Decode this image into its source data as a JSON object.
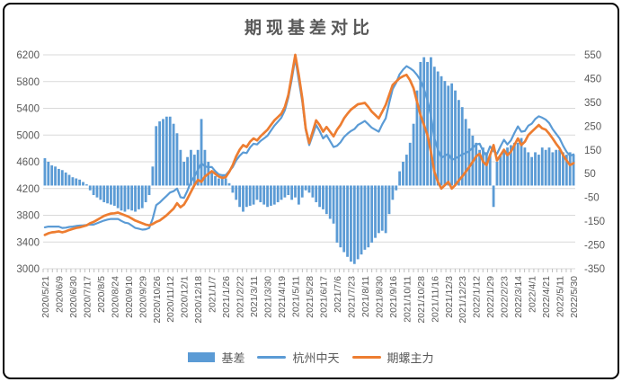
{
  "window": {
    "title": "期现基差对比"
  },
  "legend": {
    "items": [
      {
        "label": "基差",
        "type": "bar",
        "color": "#5B9BD5"
      },
      {
        "label": "杭州中天",
        "type": "line",
        "color": "#5B9BD5"
      },
      {
        "label": "期螺主力",
        "type": "line",
        "color": "#ED7D31"
      }
    ]
  },
  "colors": {
    "bar_blue": "#5B9BD5",
    "line_blue": "#5B9BD5",
    "line_orange": "#ED7D31",
    "gridline": "#D9D9D9",
    "tick": "#BFBFBF",
    "axis_text": "#595959",
    "title_text": "#595959"
  },
  "chart_data": {
    "type": "combo-bar-line",
    "title": "期现基差对比",
    "grid": true,
    "legend_position": "bottom",
    "x_labels": [
      "2020/5/21",
      "2020/6/9",
      "2020/6/30",
      "2020/7/17",
      "2020/8/5",
      "2020/8/24",
      "2020/9/10",
      "2020/9/29",
      "2020/10/26",
      "2020/11/12",
      "2020/12/1",
      "2020/12/18",
      "2021/1/7",
      "2021/1/26",
      "2021/2/22",
      "2021/3/11",
      "2021/3/30",
      "2021/4/19",
      "2021/5/11",
      "2021/5/28",
      "2021/6/17",
      "2021/7/6",
      "2021/7/23",
      "2021/8/11",
      "2021/8/30",
      "2021/9/16",
      "2021/10/11",
      "2021/10/28",
      "2021/11/16",
      "2021/12/3",
      "2021/12/23",
      "2022/1/12",
      "2022/1/29",
      "2022/2/23",
      "2022/3/14",
      "2022/4/1",
      "2022/4/21",
      "2022/5/11",
      "2022/5/30"
    ],
    "points_per_label": 4,
    "left_axis": {
      "min": 3000,
      "max": 6200,
      "step": 400,
      "ticks": [
        3000,
        3400,
        3800,
        4200,
        4600,
        5000,
        5400,
        5800,
        6200
      ]
    },
    "right_axis": {
      "min": -350,
      "max": 550,
      "step": 100,
      "ticks": [
        -350,
        -250,
        -150,
        -50,
        50,
        150,
        250,
        350,
        450,
        550
      ]
    },
    "series": [
      {
        "name": "基差",
        "type": "bar",
        "axis": "right",
        "color": "#5B9BD5",
        "values": [
          115,
          100,
          85,
          80,
          70,
          65,
          55,
          45,
          35,
          30,
          25,
          15,
          5,
          -20,
          -40,
          -50,
          -60,
          -70,
          -75,
          -80,
          -85,
          -95,
          -105,
          -110,
          -100,
          -105,
          -110,
          -100,
          -95,
          -70,
          -40,
          80,
          250,
          270,
          280,
          290,
          290,
          260,
          220,
          150,
          100,
          120,
          150,
          130,
          150,
          280,
          150,
          100,
          60,
          40,
          30,
          40,
          30,
          10,
          -30,
          -60,
          -90,
          -110,
          -90,
          -85,
          -80,
          -60,
          -70,
          -80,
          -90,
          -85,
          -80,
          -70,
          -60,
          -50,
          -40,
          -60,
          -50,
          -80,
          -50,
          -20,
          -30,
          -50,
          -70,
          -90,
          -100,
          -120,
          -140,
          -160,
          -240,
          -260,
          -280,
          -300,
          -320,
          -330,
          -310,
          -290,
          -270,
          -260,
          -240,
          -220,
          -200,
          -190,
          -200,
          -120,
          -60,
          -20,
          60,
          100,
          130,
          180,
          260,
          400,
          520,
          540,
          520,
          540,
          500,
          480,
          460,
          440,
          420,
          430,
          400,
          360,
          330,
          280,
          240,
          210,
          180,
          150,
          160,
          140,
          130,
          -90,
          100,
          130,
          150,
          160,
          170,
          180,
          180,
          200,
          160,
          140,
          120,
          140,
          130,
          160,
          150,
          160,
          140,
          150,
          150,
          140,
          130,
          140,
          130
        ]
      },
      {
        "name": "杭州中天",
        "type": "line",
        "axis": "left",
        "color": "#5B9BD5",
        "values": [
          3620,
          3630,
          3630,
          3630,
          3630,
          3610,
          3615,
          3625,
          3630,
          3640,
          3645,
          3650,
          3655,
          3660,
          3660,
          3680,
          3700,
          3720,
          3735,
          3745,
          3745,
          3745,
          3715,
          3690,
          3680,
          3645,
          3610,
          3600,
          3585,
          3590,
          3610,
          3750,
          3950,
          3990,
          4040,
          4090,
          4140,
          4160,
          4200,
          4070,
          4060,
          4170,
          4300,
          4380,
          4480,
          4580,
          4530,
          4520,
          4520,
          4460,
          4410,
          4400,
          4400,
          4460,
          4520,
          4620,
          4690,
          4740,
          4730,
          4815,
          4870,
          4860,
          4910,
          4950,
          4990,
          5065,
          5140,
          5200,
          5260,
          5370,
          5560,
          5840,
          6150,
          5820,
          5500,
          5080,
          4850,
          5000,
          5150,
          5060,
          4950,
          5000,
          4910,
          4820,
          4840,
          4890,
          4970,
          5020,
          5060,
          5090,
          5150,
          5180,
          5210,
          5160,
          5110,
          5080,
          5050,
          5160,
          5250,
          5480,
          5690,
          5780,
          5910,
          5980,
          6030,
          6000,
          5960,
          5900,
          5820,
          5690,
          5520,
          5290,
          4950,
          4780,
          4660,
          4690,
          4720,
          4630,
          4650,
          4680,
          4710,
          4730,
          4760,
          4810,
          4860,
          4870,
          4760,
          4690,
          4830,
          4760,
          4720,
          4830,
          4930,
          4860,
          4920,
          5030,
          5130,
          5050,
          5060,
          5140,
          5170,
          5240,
          5280,
          5260,
          5230,
          5180,
          5090,
          5020,
          4950,
          4840,
          4750,
          4690,
          4710
        ]
      },
      {
        "name": "期螺主力",
        "type": "line",
        "axis": "left",
        "color": "#ED7D31",
        "values": [
          3505,
          3530,
          3545,
          3550,
          3560,
          3545,
          3560,
          3580,
          3595,
          3610,
          3620,
          3635,
          3650,
          3680,
          3700,
          3730,
          3760,
          3790,
          3810,
          3825,
          3830,
          3840,
          3820,
          3800,
          3780,
          3750,
          3720,
          3700,
          3680,
          3660,
          3650,
          3670,
          3700,
          3720,
          3760,
          3800,
          3850,
          3900,
          3980,
          3920,
          3960,
          4050,
          4150,
          4250,
          4330,
          4300,
          4380,
          4420,
          4460,
          4420,
          4380,
          4360,
          4370,
          4450,
          4550,
          4680,
          4780,
          4850,
          4820,
          4900,
          4950,
          4920,
          4980,
          5030,
          5080,
          5150,
          5220,
          5270,
          5320,
          5420,
          5600,
          5900,
          6200,
          5900,
          5550,
          5100,
          4880,
          5050,
          5220,
          5150,
          5050,
          5120,
          5050,
          4980,
          5080,
          5150,
          5250,
          5320,
          5380,
          5420,
          5460,
          5470,
          5480,
          5420,
          5350,
          5300,
          5250,
          5350,
          5450,
          5600,
          5750,
          5800,
          5850,
          5880,
          5900,
          5820,
          5700,
          5500,
          5300,
          5150,
          5000,
          4750,
          4450,
          4300,
          4200,
          4250,
          4300,
          4200,
          4250,
          4320,
          4380,
          4450,
          4520,
          4600,
          4680,
          4720,
          4600,
          4550,
          4700,
          4850,
          4620,
          4700,
          4780,
          4700,
          4750,
          4850,
          4950,
          4850,
          4900,
          5000,
          5050,
          5100,
          5150,
          5100,
          5080,
          5020,
          4950,
          4870,
          4800,
          4700,
          4620,
          4550,
          4580
        ]
      }
    ]
  }
}
